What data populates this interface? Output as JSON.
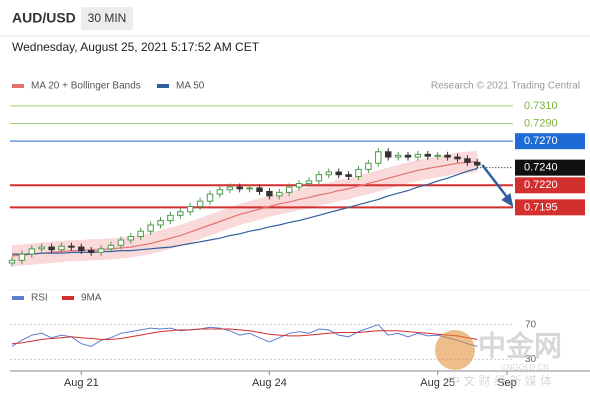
{
  "chart_data": [
    {
      "type": "candlestick",
      "title": "AUD/USD",
      "timeframe": "30 MIN",
      "subtitle": "Wednesday, August 25, 2021 5:17:52 AM CET",
      "source": "Research © 2021 Trading Central",
      "xlim": [
        0,
        50
      ],
      "xticks": [
        {
          "value": 7,
          "label": "Aug 21"
        },
        {
          "value": 26,
          "label": "Aug 24"
        },
        {
          "value": 43,
          "label": "Aug 25"
        },
        {
          "value": 50,
          "label": "Sep"
        }
      ],
      "ylim": [
        0.7107,
        0.7328
      ],
      "up_color": "#4f9a4f",
      "down_color": "#333333",
      "open": [
        0.7132,
        0.7135,
        0.7142,
        0.7148,
        0.715,
        0.7147,
        0.7151,
        0.715,
        0.7146,
        0.7144,
        0.7148,
        0.7152,
        0.7158,
        0.7162,
        0.7168,
        0.7175,
        0.718,
        0.7186,
        0.719,
        0.7196,
        0.7202,
        0.721,
        0.7215,
        0.7218,
        0.7216,
        0.7217,
        0.7213,
        0.7208,
        0.7212,
        0.7218,
        0.7222,
        0.7225,
        0.7232,
        0.7235,
        0.7232,
        0.723,
        0.7238,
        0.7245,
        0.7258,
        0.7252,
        0.7254,
        0.7252,
        0.7255,
        0.7253,
        0.7254,
        0.7252,
        0.725,
        0.7246
      ],
      "high": [
        0.7139,
        0.7146,
        0.7152,
        0.7154,
        0.7154,
        0.7155,
        0.7155,
        0.7154,
        0.715,
        0.7152,
        0.7156,
        0.7162,
        0.7166,
        0.7172,
        0.7179,
        0.7184,
        0.719,
        0.7194,
        0.72,
        0.7206,
        0.7214,
        0.7219,
        0.7222,
        0.7222,
        0.7221,
        0.7221,
        0.7217,
        0.7216,
        0.7222,
        0.7226,
        0.7229,
        0.7236,
        0.7239,
        0.7239,
        0.7236,
        0.7242,
        0.7249,
        0.7262,
        0.7262,
        0.7258,
        0.7258,
        0.7259,
        0.7259,
        0.7258,
        0.7258,
        0.7256,
        0.7254,
        0.725
      ],
      "low": [
        0.7128,
        0.7131,
        0.7138,
        0.7144,
        0.7143,
        0.7143,
        0.7146,
        0.7142,
        0.714,
        0.714,
        0.7144,
        0.7148,
        0.7154,
        0.7158,
        0.7164,
        0.7171,
        0.7176,
        0.7182,
        0.7186,
        0.7192,
        0.7198,
        0.7206,
        0.7211,
        0.7212,
        0.7212,
        0.7209,
        0.7204,
        0.7204,
        0.7208,
        0.7214,
        0.7218,
        0.7221,
        0.7228,
        0.7228,
        0.7226,
        0.7226,
        0.7234,
        0.7241,
        0.7248,
        0.7248,
        0.7248,
        0.7248,
        0.7249,
        0.7249,
        0.7248,
        0.7246,
        0.7242,
        0.7239
      ],
      "close": [
        0.7135,
        0.7142,
        0.7148,
        0.715,
        0.7147,
        0.7151,
        0.715,
        0.7146,
        0.7144,
        0.7148,
        0.7152,
        0.7158,
        0.7162,
        0.7168,
        0.7175,
        0.718,
        0.7186,
        0.719,
        0.7196,
        0.7202,
        0.721,
        0.7215,
        0.7218,
        0.7216,
        0.7217,
        0.7213,
        0.7208,
        0.7212,
        0.7218,
        0.7222,
        0.7225,
        0.7232,
        0.7235,
        0.7232,
        0.723,
        0.7238,
        0.7245,
        0.7258,
        0.7252,
        0.7254,
        0.7252,
        0.7255,
        0.7253,
        0.7254,
        0.7252,
        0.725,
        0.7246,
        0.7243
      ],
      "band": {
        "color": "#f6c9c9",
        "upper": [
          0.7152,
          0.7153,
          0.7154,
          0.7155,
          0.7156,
          0.7157,
          0.7158,
          0.7158,
          0.7159,
          0.7159,
          0.716,
          0.7161,
          0.7162,
          0.7164,
          0.7166,
          0.7169,
          0.7172,
          0.7175,
          0.7179,
          0.7183,
          0.7187,
          0.7191,
          0.7195,
          0.7199,
          0.7202,
          0.7205,
          0.7208,
          0.7211,
          0.7213,
          0.7216,
          0.7218,
          0.7221,
          0.7223,
          0.7226,
          0.7228,
          0.7231,
          0.7234,
          0.7237,
          0.724,
          0.7243,
          0.7246,
          0.7249,
          0.7251,
          0.7253,
          0.7255,
          0.7257,
          0.7258,
          0.7259
        ],
        "lower": [
          0.7128,
          0.7129,
          0.713,
          0.7131,
          0.7132,
          0.7133,
          0.7134,
          0.7134,
          0.7135,
          0.7135,
          0.7136,
          0.7137,
          0.7138,
          0.714,
          0.7142,
          0.7145,
          0.7148,
          0.7151,
          0.7155,
          0.7159,
          0.7163,
          0.7167,
          0.7171,
          0.7175,
          0.7178,
          0.7181,
          0.7184,
          0.7187,
          0.7189,
          0.7192,
          0.7194,
          0.7197,
          0.7199,
          0.7202,
          0.7204,
          0.7207,
          0.721,
          0.7213,
          0.7216,
          0.7219,
          0.7222,
          0.7225,
          0.7227,
          0.7229,
          0.7231,
          0.7233,
          0.7234,
          0.7235
        ]
      },
      "series": [
        {
          "name": "MA 20 + Bollinger Bands",
          "color": "#e57373",
          "values": [
            0.714,
            0.7141,
            0.7142,
            0.7143,
            0.7144,
            0.7145,
            0.7146,
            0.7146,
            0.7147,
            0.7147,
            0.7148,
            0.7149,
            0.715,
            0.7152,
            0.7154,
            0.7157,
            0.716,
            0.7163,
            0.7167,
            0.7171,
            0.7175,
            0.7179,
            0.7183,
            0.7187,
            0.719,
            0.7193,
            0.7196,
            0.7199,
            0.7201,
            0.7204,
            0.7206,
            0.7209,
            0.7211,
            0.7214,
            0.7216,
            0.7219,
            0.7222,
            0.7225,
            0.7228,
            0.7231,
            0.7234,
            0.7237,
            0.7239,
            0.7241,
            0.7243,
            0.7245,
            0.7246,
            0.7247
          ]
        },
        {
          "name": "MA 50",
          "color": "#2f5f9e",
          "values": [
            0.7142,
            0.7142,
            0.7142,
            0.7143,
            0.7143,
            0.7143,
            0.7144,
            0.7144,
            0.7144,
            0.7145,
            0.7145,
            0.7146,
            0.7146,
            0.7147,
            0.7148,
            0.7149,
            0.715,
            0.7152,
            0.7154,
            0.7156,
            0.7158,
            0.716,
            0.7163,
            0.7165,
            0.7168,
            0.717,
            0.7173,
            0.7175,
            0.7178,
            0.718,
            0.7183,
            0.7186,
            0.7189,
            0.7192,
            0.7195,
            0.7198,
            0.7201,
            0.7204,
            0.7208,
            0.7211,
            0.7214,
            0.7218,
            0.7221,
            0.7225,
            0.7228,
            0.7232,
            0.7236,
            0.7239
          ]
        }
      ],
      "levels": [
        {
          "value": 0.731,
          "label": "0.7310",
          "color": "#7cb342",
          "boxed": false
        },
        {
          "value": 0.729,
          "label": "0.7290",
          "color": "#7cb342",
          "boxed": false
        },
        {
          "value": 0.727,
          "label": "0.7270",
          "color": "#1e6bd6",
          "boxed": true
        },
        {
          "value": 0.724,
          "label": "0.7240",
          "color": "#111111",
          "boxed": true,
          "dotted": true
        },
        {
          "value": 0.722,
          "label": "0.7220",
          "color": "#d32f2f",
          "boxed": true
        },
        {
          "value": 0.7195,
          "label": "0.7195",
          "color": "#d32f2f",
          "boxed": true
        }
      ]
    },
    {
      "type": "line",
      "xlim": [
        0,
        50
      ],
      "ylim": [
        20,
        80
      ],
      "yticks": [
        70,
        30
      ],
      "series": [
        {
          "name": "RSI",
          "color": "#5b7fd1",
          "values": [
            45,
            52,
            58,
            60,
            55,
            58,
            56,
            48,
            45,
            52,
            55,
            60,
            62,
            64,
            66,
            65,
            66,
            63,
            64,
            65,
            67,
            66,
            63,
            58,
            60,
            55,
            50,
            55,
            60,
            62,
            60,
            65,
            64,
            58,
            56,
            62,
            66,
            70,
            58,
            60,
            56,
            60,
            57,
            58,
            55,
            52,
            48,
            45
          ]
        },
        {
          "name": "9MA",
          "color": "#d32f2f",
          "values": [
            48,
            49,
            51,
            53,
            54,
            55,
            56,
            55,
            54,
            53,
            53,
            54,
            56,
            58,
            60,
            62,
            63,
            64,
            64,
            65,
            65,
            65,
            65,
            64,
            63,
            61,
            59,
            58,
            57,
            57,
            58,
            59,
            60,
            61,
            61,
            61,
            62,
            63,
            63,
            63,
            62,
            61,
            60,
            59,
            58,
            57,
            55,
            53
          ]
        }
      ]
    }
  ],
  "watermark": {
    "name": "中金网",
    "site": "CNGOLD.CN",
    "tagline": "中 文 财 经 新 媒 体"
  }
}
